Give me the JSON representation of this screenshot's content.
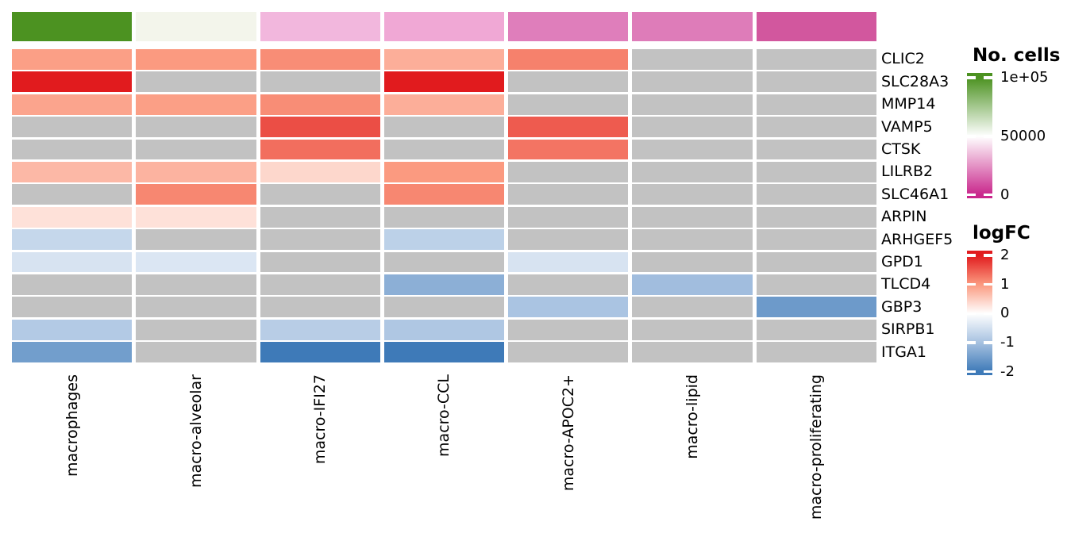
{
  "chart_data": {
    "type": "heatmap",
    "title": "",
    "columns": [
      "macrophages",
      "macro-alveolar",
      "macro-IFI27",
      "macro-CCL",
      "macro-APOC2+",
      "macro-lipid",
      "macro-proliferating"
    ],
    "rows": [
      "CLIC2",
      "SLC28A3",
      "MMP14",
      "VAMP5",
      "CTSK",
      "LILRB2",
      "SLC46A1",
      "ARPIN",
      "ARHGEF5",
      "GPD1",
      "TLCD4",
      "GBP3",
      "SIRPB1",
      "ITGA1"
    ],
    "values_logfc": [
      [
        0.95,
        1.0,
        1.1,
        0.8,
        1.2,
        null,
        null
      ],
      [
        2.0,
        null,
        null,
        2.0,
        null,
        null,
        null
      ],
      [
        0.9,
        0.95,
        1.1,
        0.8,
        null,
        null,
        null
      ],
      [
        null,
        null,
        1.6,
        null,
        1.5,
        null,
        null
      ],
      [
        null,
        null,
        1.35,
        null,
        1.3,
        null,
        null
      ],
      [
        0.7,
        0.75,
        0.4,
        1.0,
        null,
        null,
        null
      ],
      [
        null,
        1.15,
        null,
        1.15,
        null,
        null,
        null
      ],
      [
        0.3,
        0.3,
        null,
        null,
        null,
        null,
        null
      ],
      [
        -0.65,
        null,
        null,
        -0.75,
        null,
        null,
        null
      ],
      [
        -0.45,
        -0.4,
        null,
        null,
        -0.45,
        null,
        null
      ],
      [
        null,
        null,
        null,
        -1.25,
        null,
        -1.05,
        null
      ],
      [
        null,
        null,
        null,
        null,
        -0.95,
        null,
        -1.55
      ],
      [
        -0.85,
        null,
        -0.8,
        -0.9,
        null,
        null,
        null
      ],
      [
        -1.5,
        null,
        -2.0,
        -2.0,
        null,
        null,
        null
      ]
    ],
    "na_color": "#C2C2C2",
    "top_annotation": {
      "legend_title": "No. cells",
      "values": [
        100000,
        54000,
        33000,
        30000,
        21000,
        20000,
        11500
      ],
      "colors": [
        "#4C9221",
        "#F3F5EB",
        "#F2B7DD",
        "#F0A8D5",
        "#DF7EBB",
        "#DE7CB9",
        "#D2579E"
      ]
    },
    "legends": [
      {
        "title": "No. cells",
        "ticks": [
          {
            "value": 100000,
            "label": "1e+05"
          },
          {
            "value": 50000,
            "label": "50000"
          },
          {
            "value": 0,
            "label": "0"
          }
        ],
        "scale": [
          [
            0,
            "#C9278C"
          ],
          [
            50000,
            "#FFFFFF"
          ],
          [
            100000,
            "#4C9221"
          ]
        ]
      },
      {
        "title": "logFC",
        "ticks": [
          {
            "value": 2,
            "label": "2"
          },
          {
            "value": 1,
            "label": "1"
          },
          {
            "value": 0,
            "label": "0"
          },
          {
            "value": -1,
            "label": "-1"
          },
          {
            "value": -2,
            "label": "-2"
          }
        ],
        "scale": [
          [
            -2,
            "#3E7AB8"
          ],
          [
            -1,
            "#A6C1E0"
          ],
          [
            0,
            "#FFFFFF"
          ],
          [
            1,
            "#FB9A80"
          ],
          [
            2,
            "#E11B1E"
          ]
        ]
      }
    ],
    "layout_hints": {
      "grid_on": false,
      "row_labels_position": "right",
      "column_labels_rotation": 90,
      "legend_position": "right"
    }
  }
}
